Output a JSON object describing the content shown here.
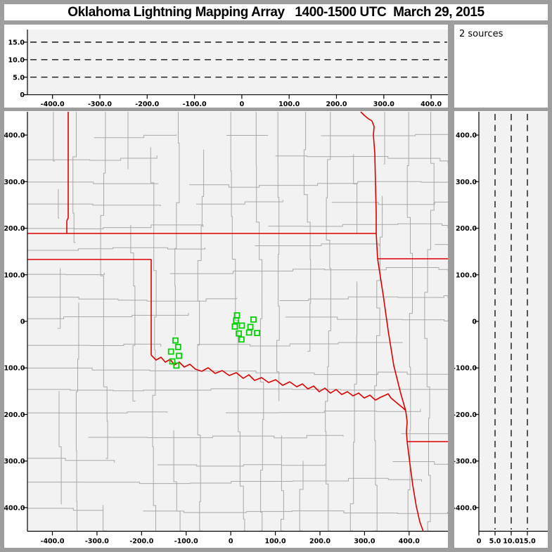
{
  "chart_data": {
    "type": "scatter",
    "title": "Oklahoma Lightning Mapping Array   1400-1500 UTC  March 29, 2015",
    "sources_label": "2 sources",
    "reference_altitudes_km": [
      5,
      10,
      15
    ],
    "panels": [
      {
        "id": "alt-vs-east-west",
        "position": "top",
        "content": "altitude cross-section with dashed reference lines at 5, 10, 15 km; no sources plotted"
      },
      {
        "id": "plan-view-map",
        "position": "main",
        "content": "Oklahoma region county map with red state borders and green LMA station squares"
      },
      {
        "id": "alt-vs-north-south",
        "position": "right",
        "content": "altitude cross-section with dashed reference lines at 5, 10, 15 km; no sources plotted"
      }
    ],
    "axis_ew_map": {
      "tick_values": [
        -400,
        -300,
        -200,
        -100,
        0,
        100,
        200,
        300,
        400
      ],
      "tick_labels": [
        "-400.0",
        "-300.0",
        "-200.0",
        "-100.0",
        "0",
        "100.0",
        "200.0",
        "300.0",
        "400.0"
      ],
      "range": [
        -456,
        487
      ]
    },
    "axis_ew_top": {
      "tick_values": [
        -400,
        -300,
        -200,
        -100,
        0,
        100,
        200,
        300,
        400
      ],
      "tick_labels": [
        "-400.0",
        "-300.0",
        "-200.0",
        "-100.0",
        "0",
        "100.0",
        "200.0",
        "300.0",
        "400.0"
      ],
      "range": [
        -453,
        437
      ]
    },
    "axis_ns": {
      "tick_values": [
        400,
        300,
        200,
        100,
        0,
        -100,
        -200,
        -300,
        -400
      ],
      "tick_labels": [
        "400.0",
        "300.0",
        "200.0",
        "100.0",
        "0",
        "-100.0",
        "-200.0",
        "-300.0",
        "-400.0"
      ],
      "range": [
        -450,
        450
      ]
    },
    "axis_alt_top": {
      "tick_values": [
        15,
        10,
        5,
        0
      ],
      "tick_labels": [
        "15.0",
        "10.0",
        "5.0",
        "0"
      ],
      "range": [
        0,
        18.6
      ]
    },
    "axis_alt_right": {
      "tick_values": [
        0,
        5,
        10,
        15
      ],
      "tick_labels": [
        "0",
        "5.0",
        "10.0",
        "15.0"
      ],
      "range": [
        0,
        21.3
      ]
    },
    "stations_km": [
      [
        14,
        13
      ],
      [
        12,
        2
      ],
      [
        9,
        -11
      ],
      [
        25,
        -9
      ],
      [
        18,
        -26
      ],
      [
        24,
        -39
      ],
      [
        51,
        4
      ],
      [
        44,
        -12
      ],
      [
        41,
        -24
      ],
      [
        59,
        -25
      ],
      [
        -124,
        -41
      ],
      [
        -118,
        -55
      ],
      [
        -134,
        -65
      ],
      [
        -116,
        -74
      ],
      [
        -131,
        -86
      ],
      [
        -122,
        -95
      ]
    ],
    "colors": {
      "station": "#00d300",
      "state_border": "#dd0000",
      "county_line": "#a9a9a9",
      "plot_bg": "#f2f2f2",
      "frame": "#9e9e9e",
      "axis": "#000000",
      "panel_bg": "#ffffff"
    }
  }
}
